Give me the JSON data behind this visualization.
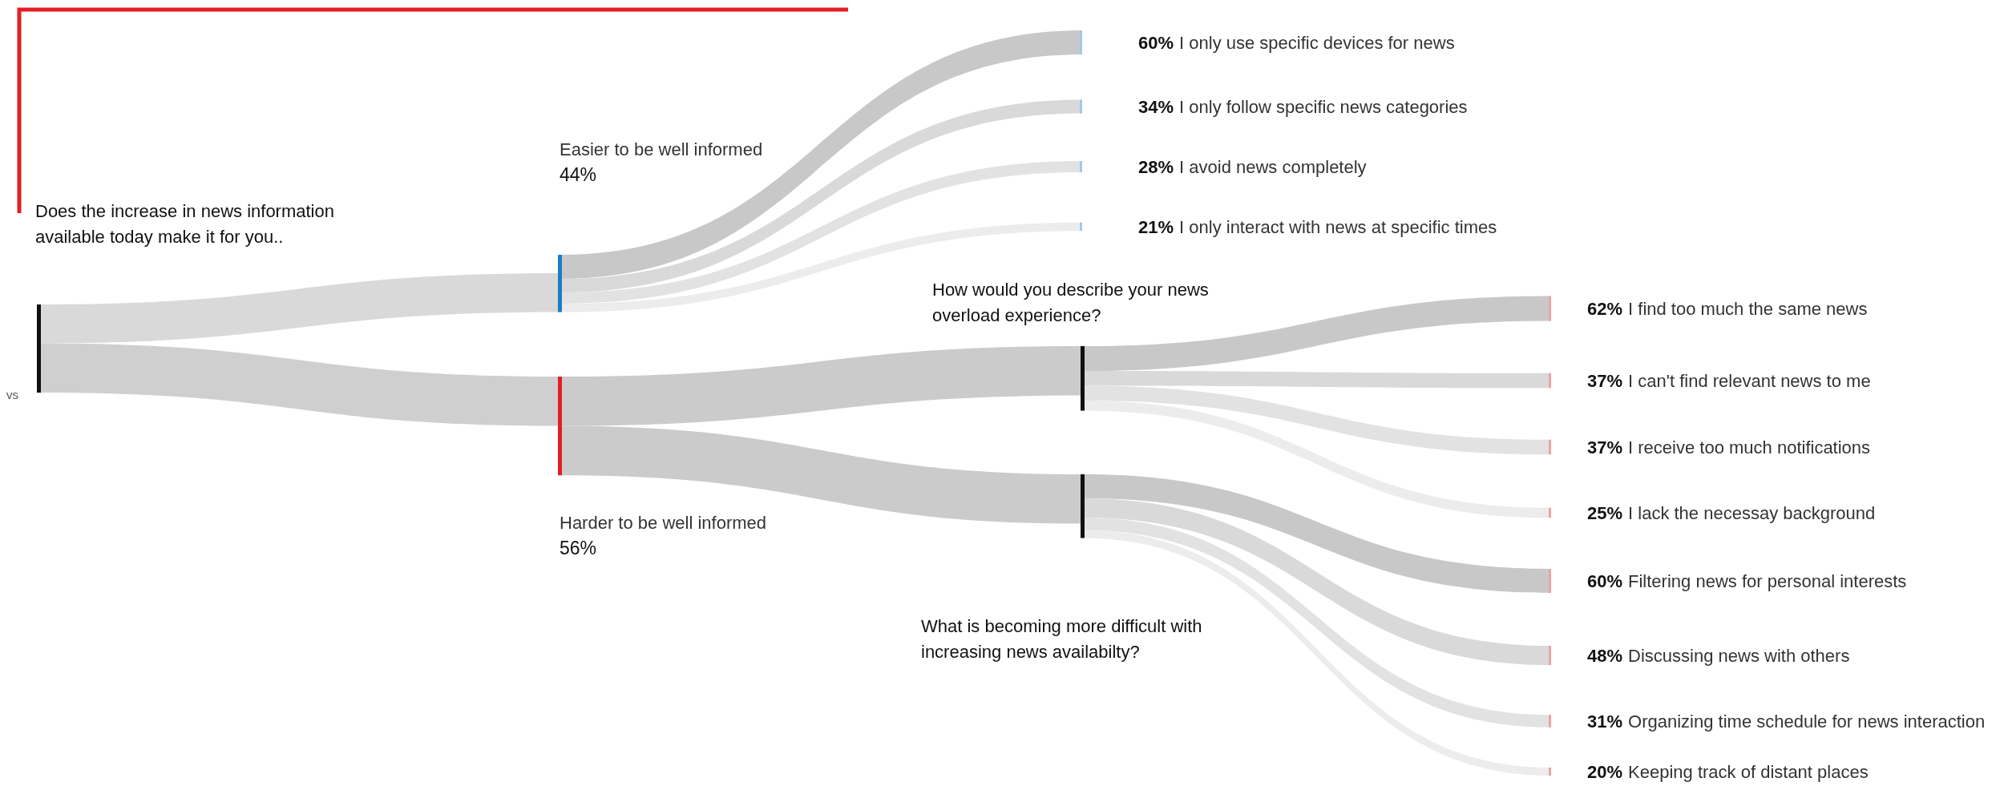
{
  "chart_data": {
    "type": "other",
    "categories": [
      "Easier to be well informed",
      "Harder to be well informed",
      "I only use specific devices for news",
      "I only follow specific news categories",
      "I avoid news completely",
      "I only interact with news at specific times",
      "I find too much the same news",
      "I can't find relevant news to me",
      "I receive too much notifications",
      "I lack the necessay background",
      "Filtering news for personal interests",
      "Discussing news with others",
      "Organizing time schedule for news interaction",
      "Keeping track of distant places"
    ],
    "values": [
      44,
      56,
      60,
      34,
      28,
      21,
      62,
      37,
      37,
      25,
      60,
      48,
      31,
      20
    ],
    "value_labels": [
      "44%",
      "56%",
      "60%",
      "34%",
      "28%",
      "21%",
      "62%",
      "37%",
      "37%",
      "25%",
      "60%",
      "48%",
      "31%",
      "20%"
    ],
    "colors": [
      "#1a7fc1",
      "#e31e24",
      "#9fcbe6",
      "#9fcbe6",
      "#9fcbe6",
      "#9fcbe6",
      "#f0a0a4",
      "#f0a0a4",
      "#f0a0a4",
      "#f0a0a4",
      "#f0a0a4",
      "#f0a0a4",
      "#f0a0a4",
      "#f0a0a4"
    ],
    "annotations": [
      "Does the increase in news information available today make it for you..",
      "How would you describe your news overload experience?",
      "What is becoming more difficult with increasing news availabilty?",
      "vs"
    ]
  }
}
